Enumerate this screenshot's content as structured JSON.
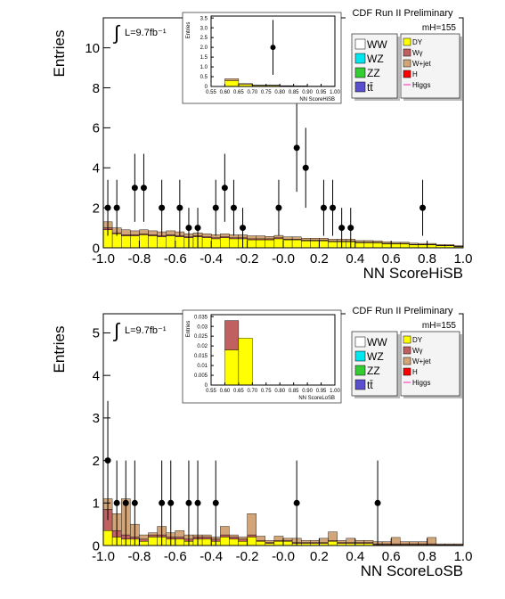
{
  "chart_data": [
    {
      "type": "stacked-histogram",
      "header": "CDF Run II Preliminary",
      "mass_label": "mH=155",
      "lumi": "L=9.7fb⁻¹",
      "xlabel": "NN ScoreHiSB",
      "ylabel": "Entries",
      "xlim": [
        -1,
        1
      ],
      "ylim": [
        0,
        11.5
      ],
      "xticks": [
        {
          "value": -1,
          "label": "-1.0"
        },
        -0.8,
        -0.6,
        -0.4,
        -0.2,
        {
          "value": 0,
          "label": "-0.0"
        },
        0.2,
        0.4,
        0.6,
        0.8,
        {
          "value": 1,
          "label": "1.0"
        }
      ],
      "yticks": [
        0,
        2,
        4,
        6,
        8,
        10
      ],
      "bins_start": -1,
      "bin_width": 0.05,
      "series": [
        {
          "name": "WW",
          "color": "#ffffff"
        },
        {
          "name": "WZ",
          "color": "#00e5ee"
        },
        {
          "name": "ZZ",
          "color": "#33cc33"
        },
        {
          "name": "tt̄",
          "color": "#5a4fcf"
        },
        {
          "name": "DY",
          "color": "#ffff00",
          "values": [
            0.9,
            0.7,
            0.6,
            0.6,
            0.65,
            0.6,
            0.55,
            0.6,
            0.55,
            0.5,
            0.55,
            0.5,
            0.45,
            0.5,
            0.45,
            0.45,
            0.4,
            0.4,
            0.4,
            0.45,
            0.4,
            0.4,
            0.35,
            0.35,
            0.35,
            0.3,
            0.3,
            0.3,
            0.25,
            0.25,
            0.25,
            0.2,
            0.2,
            0.2,
            0.15,
            0.15,
            0.15,
            0.1,
            0.1,
            0.05
          ]
        },
        {
          "name": "Wγ",
          "color": "#c06060",
          "values": [
            0.1,
            0.05,
            0.05,
            0.05,
            0.05,
            0.05,
            0.05,
            0.05,
            0.05,
            0.05,
            0.05,
            0.05,
            0.05,
            0.05,
            0.05,
            0.05,
            0.05,
            0.05,
            0.05,
            0.05,
            0.03,
            0.03,
            0.03,
            0.03,
            0.03,
            0.03,
            0.03,
            0.03,
            0.03,
            0.03,
            0.02,
            0.02,
            0.02,
            0.02,
            0.02,
            0.02,
            0.02,
            0.02,
            0.02,
            0.02
          ]
        },
        {
          "name": "W+jet",
          "color": "#d2a679",
          "values": [
            0.3,
            0.25,
            0.25,
            0.2,
            0.2,
            0.2,
            0.2,
            0.2,
            0.2,
            0.15,
            0.15,
            0.15,
            0.15,
            0.15,
            0.15,
            0.15,
            0.15,
            0.15,
            0.12,
            0.12,
            0.12,
            0.12,
            0.1,
            0.1,
            0.1,
            0.1,
            0.1,
            0.1,
            0.08,
            0.08,
            0.08,
            0.08,
            0.06,
            0.06,
            0.06,
            0.05,
            0.05,
            0.05,
            0.04,
            0.04
          ]
        },
        {
          "name": "H",
          "color": "#ff0000"
        },
        {
          "name": "Higgs",
          "color": "#ff66cc",
          "line": true
        }
      ],
      "points": {
        "x": [
          -0.975,
          -0.925,
          -0.825,
          -0.775,
          -0.675,
          -0.575,
          -0.525,
          -0.475,
          -0.375,
          -0.325,
          -0.275,
          -0.225,
          -0.025,
          0.075,
          0.125,
          0.225,
          0.275,
          0.325,
          0.375,
          0.775
        ],
        "values": [
          2,
          2,
          3,
          3,
          2,
          2,
          1,
          1,
          2,
          3,
          2,
          1,
          2,
          5,
          4,
          2,
          2,
          1,
          1,
          2
        ],
        "errors": [
          1.4,
          1.4,
          1.7,
          1.7,
          1.4,
          1.4,
          1,
          1,
          1.4,
          1.7,
          1.4,
          1,
          1.4,
          2.2,
          2,
          1.4,
          1.4,
          1,
          1,
          1.4
        ]
      },
      "inset": {
        "xlabel": "NN ScoreHiSB",
        "ylabel": "Entries",
        "xlim": [
          0.55,
          1
        ],
        "ylim": [
          0,
          3.6
        ],
        "xticks": [
          0.55,
          {
            "value": 0.6,
            "label": "0.60"
          },
          0.65,
          {
            "value": 0.7,
            "label": "0.70"
          },
          0.75,
          {
            "value": 0.8,
            "label": "0.80"
          },
          0.85,
          {
            "value": 0.9,
            "label": "0.90"
          },
          0.95,
          {
            "value": 1,
            "label": "1.00"
          }
        ],
        "yticks": [
          0,
          0.5,
          {
            "value": 1,
            "label": "1.0"
          },
          1.5,
          {
            "value": 2,
            "label": "2.0"
          },
          2.5,
          {
            "value": 3,
            "label": "3.0"
          },
          3.5
        ],
        "bins_start": 0.55,
        "bin_width": 0.05,
        "series": [
          {
            "color": "#ffff00",
            "values": [
              0,
              0.3,
              0.1,
              0.05,
              0.05,
              0.03,
              0.02,
              0.01,
              0.01
            ]
          },
          {
            "color": "#d2a679",
            "values": [
              0,
              0.1,
              0.05,
              0.02,
              0.02,
              0.01,
              0.01,
              0.01,
              0.01
            ]
          }
        ],
        "points": {
          "x": [
            0.775
          ],
          "values": [
            2
          ],
          "errors": [
            1.4
          ]
        }
      }
    },
    {
      "type": "stacked-histogram",
      "header": "CDF Run II Preliminary",
      "mass_label": "mH=155",
      "lumi": "L=9.7fb⁻¹",
      "xlabel": "NN ScoreLoSB",
      "ylabel": "Entries",
      "xlim": [
        -1,
        1
      ],
      "ylim": [
        0,
        5.45
      ],
      "xticks": [
        {
          "value": -1,
          "label": "-1.0"
        },
        -0.8,
        -0.6,
        -0.4,
        -0.2,
        {
          "value": 0,
          "label": "-0.0"
        },
        0.2,
        0.4,
        0.6,
        0.8,
        {
          "value": 1,
          "label": "1.0"
        }
      ],
      "yticks": [
        0,
        1,
        2,
        3,
        4,
        5
      ],
      "bins_start": -1,
      "bin_width": 0.05,
      "series": [
        {
          "name": "WW",
          "color": "#ffffff"
        },
        {
          "name": "WZ",
          "color": "#00e5ee"
        },
        {
          "name": "ZZ",
          "color": "#33cc33"
        },
        {
          "name": "tt̄",
          "color": "#5a4fcf"
        },
        {
          "name": "DY",
          "color": "#ffff00",
          "values": [
            0.35,
            0.2,
            0.15,
            0.15,
            0.1,
            0.2,
            0.2,
            0.15,
            0.15,
            0.1,
            0.15,
            0.15,
            0.1,
            0.2,
            0.15,
            0.1,
            0.2,
            0.1,
            0.05,
            0.1,
            0.1,
            0.05,
            0.05,
            0.05,
            0.05,
            0.1,
            0.05,
            0.05,
            0.05,
            0.05,
            0.02,
            0.02,
            0.02,
            0.02,
            0.02,
            0.02,
            0.02,
            0.01,
            0.01,
            0.01
          ]
        },
        {
          "name": "Wγ",
          "color": "#c06060",
          "values": [
            0.5,
            0.15,
            0.1,
            0.05,
            0.05,
            0.05,
            0.05,
            0.05,
            0.05,
            0.05,
            0.05,
            0.05,
            0.05,
            0.05,
            0.05,
            0.05,
            0.05,
            0.02,
            0.02,
            0.02,
            0.02,
            0.02,
            0.02,
            0.02,
            0.02,
            0.02,
            0.02,
            0.02,
            0.02,
            0.02,
            0.02,
            0.02,
            0.02,
            0.02,
            0.02,
            0.02,
            0.02,
            0.01,
            0.01,
            0.01
          ]
        },
        {
          "name": "W+jet",
          "color": "#d2a679",
          "values": [
            0.25,
            0.4,
            0.85,
            0.3,
            0.1,
            0.05,
            0.2,
            0.1,
            0.15,
            0.1,
            0.05,
            0.05,
            0.05,
            0.2,
            0.05,
            0.05,
            0.5,
            0.1,
            0.05,
            0.1,
            0.05,
            0.1,
            0.05,
            0.05,
            0.1,
            0.2,
            0.05,
            0.1,
            0.05,
            0.05,
            0.05,
            0.05,
            0.15,
            0.05,
            0.05,
            0.05,
            0.15,
            0.02,
            0.02,
            0.02
          ]
        },
        {
          "name": "H",
          "color": "#ff0000"
        },
        {
          "name": "Higgs",
          "color": "#ff66cc",
          "line": true
        }
      ],
      "points": {
        "x": [
          -0.975,
          -0.925,
          -0.875,
          -0.825,
          -0.675,
          -0.625,
          -0.525,
          -0.475,
          -0.375,
          0.075,
          0.525
        ],
        "values": [
          2,
          1,
          1,
          1,
          1,
          1,
          1,
          1,
          1,
          1,
          1
        ],
        "errors": [
          1.4,
          1,
          1,
          1,
          1,
          1,
          1,
          1,
          1,
          1,
          1
        ]
      },
      "inset": {
        "xlabel": "NN ScoreLoSB",
        "ylabel": "Entries",
        "xlim": [
          0.55,
          1
        ],
        "ylim": [
          0,
          0.036
        ],
        "xticks": [
          0.55,
          {
            "value": 0.6,
            "label": "0.60"
          },
          0.65,
          {
            "value": 0.7,
            "label": "0.70"
          },
          0.75,
          {
            "value": 0.8,
            "label": "0.80"
          },
          0.85,
          {
            "value": 0.9,
            "label": "0.90"
          },
          0.95,
          {
            "value": 1,
            "label": "1.00"
          }
        ],
        "yticks": [
          0,
          0.005,
          0.01,
          0.015,
          0.02,
          0.025,
          0.03,
          0.035
        ],
        "bins_start": 0.55,
        "bin_width": 0.05,
        "series": [
          {
            "color": "#ffff00",
            "values": [
              0,
              0.018,
              0.024,
              0,
              0,
              0,
              0,
              0,
              0
            ]
          },
          {
            "color": "#c06060",
            "values": [
              0,
              0.015,
              0,
              0,
              0,
              0,
              0,
              0,
              0
            ]
          }
        ],
        "points": {
          "x": [],
          "values": [],
          "errors": []
        }
      }
    }
  ]
}
